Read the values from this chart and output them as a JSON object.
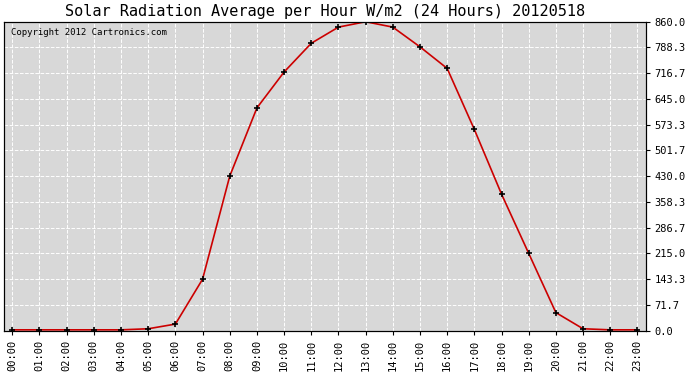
{
  "title": "Solar Radiation Average per Hour W/m2 (24 Hours) 20120518",
  "copyright_text": "Copyright 2012 Cartronics.com",
  "hours": [
    "00:00",
    "01:00",
    "02:00",
    "03:00",
    "04:00",
    "05:00",
    "06:00",
    "07:00",
    "08:00",
    "09:00",
    "10:00",
    "11:00",
    "12:00",
    "13:00",
    "14:00",
    "15:00",
    "16:00",
    "17:00",
    "18:00",
    "19:00",
    "20:00",
    "21:00",
    "22:00",
    "23:00"
  ],
  "values": [
    2,
    2,
    2,
    2,
    2,
    5,
    18,
    143,
    430,
    620,
    720,
    800,
    845,
    860,
    845,
    790,
    730,
    560,
    380,
    215,
    50,
    5,
    2,
    2
  ],
  "line_color": "#cc0000",
  "marker": "+",
  "marker_color": "#000000",
  "background_color": "#d8d8d8",
  "grid_color": "#ffffff",
  "ylim": [
    0,
    860
  ],
  "yticks": [
    0.0,
    71.7,
    143.3,
    215.0,
    286.7,
    358.3,
    430.0,
    501.7,
    573.3,
    645.0,
    716.7,
    788.3,
    860.0
  ],
  "title_fontsize": 11,
  "copyright_fontsize": 6.5,
  "tick_fontsize": 7.5
}
